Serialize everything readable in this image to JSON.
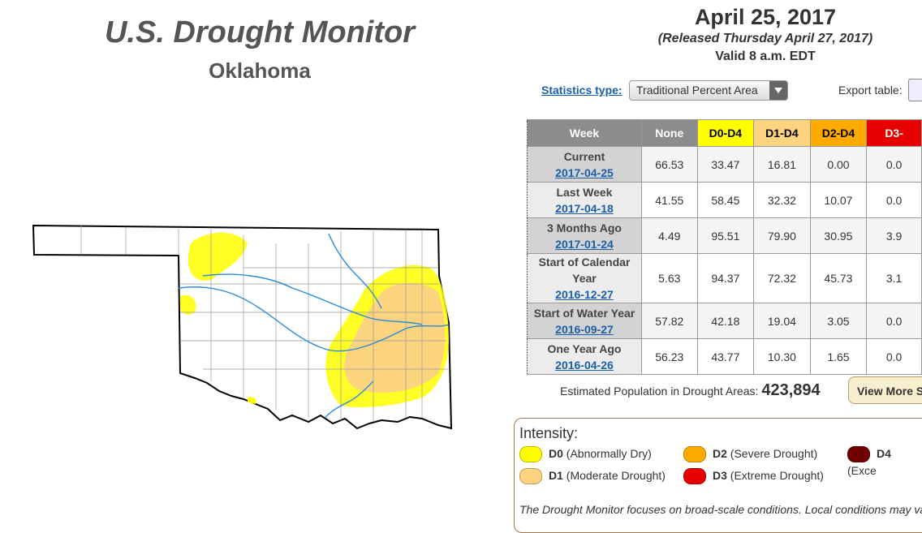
{
  "header": {
    "title": "U.S. Drought Monitor",
    "state": "Oklahoma",
    "date": "April 25, 2017",
    "released": "(Released Thursday April 27, 2017)",
    "valid": "Valid 8 a.m. EDT"
  },
  "controls": {
    "statistics_label": "Statistics type:",
    "statistics_value": "Traditional Percent Area",
    "export_label": "Export table:"
  },
  "table": {
    "headers": [
      "Week",
      "None",
      "D0-D4",
      "D1-D4",
      "D2-D4",
      "D3-"
    ],
    "rows": [
      {
        "week": "Current",
        "date": "2017-04-25",
        "values": [
          "66.53",
          "33.47",
          "16.81",
          "0.00",
          "0.0"
        ]
      },
      {
        "week": "Last Week",
        "date": "2017-04-18",
        "values": [
          "41.55",
          "58.45",
          "32.32",
          "10.07",
          "0.0"
        ]
      },
      {
        "week": "3 Months Ago",
        "date": "2017-01-24",
        "values": [
          "4.49",
          "95.51",
          "79.90",
          "30.95",
          "3.9"
        ]
      },
      {
        "week": "Start of Calendar Year",
        "date": "2016-12-27",
        "values": [
          "5.63",
          "94.37",
          "72.32",
          "45.73",
          "3.1"
        ]
      },
      {
        "week": "Start of Water Year",
        "date": "2016-09-27",
        "values": [
          "57.82",
          "42.18",
          "19.04",
          "3.05",
          "0.0"
        ]
      },
      {
        "week": "One Year Ago",
        "date": "2016-04-26",
        "values": [
          "56.23",
          "43.77",
          "10.30",
          "1.65",
          "0.0"
        ]
      }
    ]
  },
  "population": {
    "label": "Estimated Population in Drought Areas:",
    "value": "423,894",
    "button": "View More S"
  },
  "legend": {
    "title": "Intensity:",
    "items": [
      {
        "code": "D0",
        "desc": "(Abnormally Dry)",
        "color": "#ffff00"
      },
      {
        "code": "D1",
        "desc": "(Moderate Drought)",
        "color": "#fcd37f"
      },
      {
        "code": "D2",
        "desc": "(Severe Drought)",
        "color": "#ffaa00"
      },
      {
        "code": "D3",
        "desc": "(Extreme Drought)",
        "color": "#e60000"
      },
      {
        "code": "D4",
        "desc": "(Exce",
        "color": "#730000"
      }
    ]
  },
  "footer": "The Drought Monitor focuses on broad-scale conditions. Local conditions may va"
}
